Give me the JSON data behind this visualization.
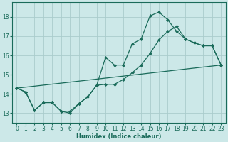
{
  "xlabel": "Humidex (Indice chaleur)",
  "bg_color": "#cce8e8",
  "grid_color": "#aacccc",
  "line_color": "#1a6b5a",
  "xlim": [
    -0.5,
    23.5
  ],
  "ylim": [
    12.5,
    18.75
  ],
  "yticks": [
    13,
    14,
    15,
    16,
    17,
    18
  ],
  "xticks": [
    0,
    1,
    2,
    3,
    4,
    5,
    6,
    7,
    8,
    9,
    10,
    11,
    12,
    13,
    14,
    15,
    16,
    17,
    18,
    19,
    20,
    21,
    22,
    23
  ],
  "line1_x": [
    0,
    1,
    2,
    3,
    4,
    5,
    6,
    7,
    8,
    9,
    10,
    11,
    12,
    13,
    14,
    15,
    16,
    17,
    18,
    19,
    20,
    21,
    22,
    23
  ],
  "line1_y": [
    14.3,
    14.1,
    13.15,
    13.55,
    13.55,
    13.1,
    13.1,
    13.5,
    13.85,
    14.45,
    15.9,
    15.5,
    15.5,
    16.6,
    16.85,
    18.05,
    18.25,
    17.85,
    17.25,
    16.85,
    16.65,
    16.5,
    16.5,
    15.5
  ],
  "line2_x": [
    0,
    1,
    2,
    3,
    4,
    5,
    6,
    7,
    8,
    9,
    10,
    11,
    12,
    13,
    14,
    15,
    16,
    17,
    18,
    19,
    20,
    21,
    22,
    23
  ],
  "line2_y": [
    14.3,
    14.1,
    13.15,
    13.55,
    13.55,
    13.1,
    13.0,
    13.5,
    13.85,
    14.45,
    14.5,
    14.5,
    14.75,
    15.1,
    15.5,
    16.1,
    16.8,
    17.25,
    17.5,
    16.85,
    16.65,
    16.5,
    16.5,
    15.5
  ],
  "line3_x": [
    0,
    23
  ],
  "line3_y": [
    14.3,
    15.5
  ]
}
